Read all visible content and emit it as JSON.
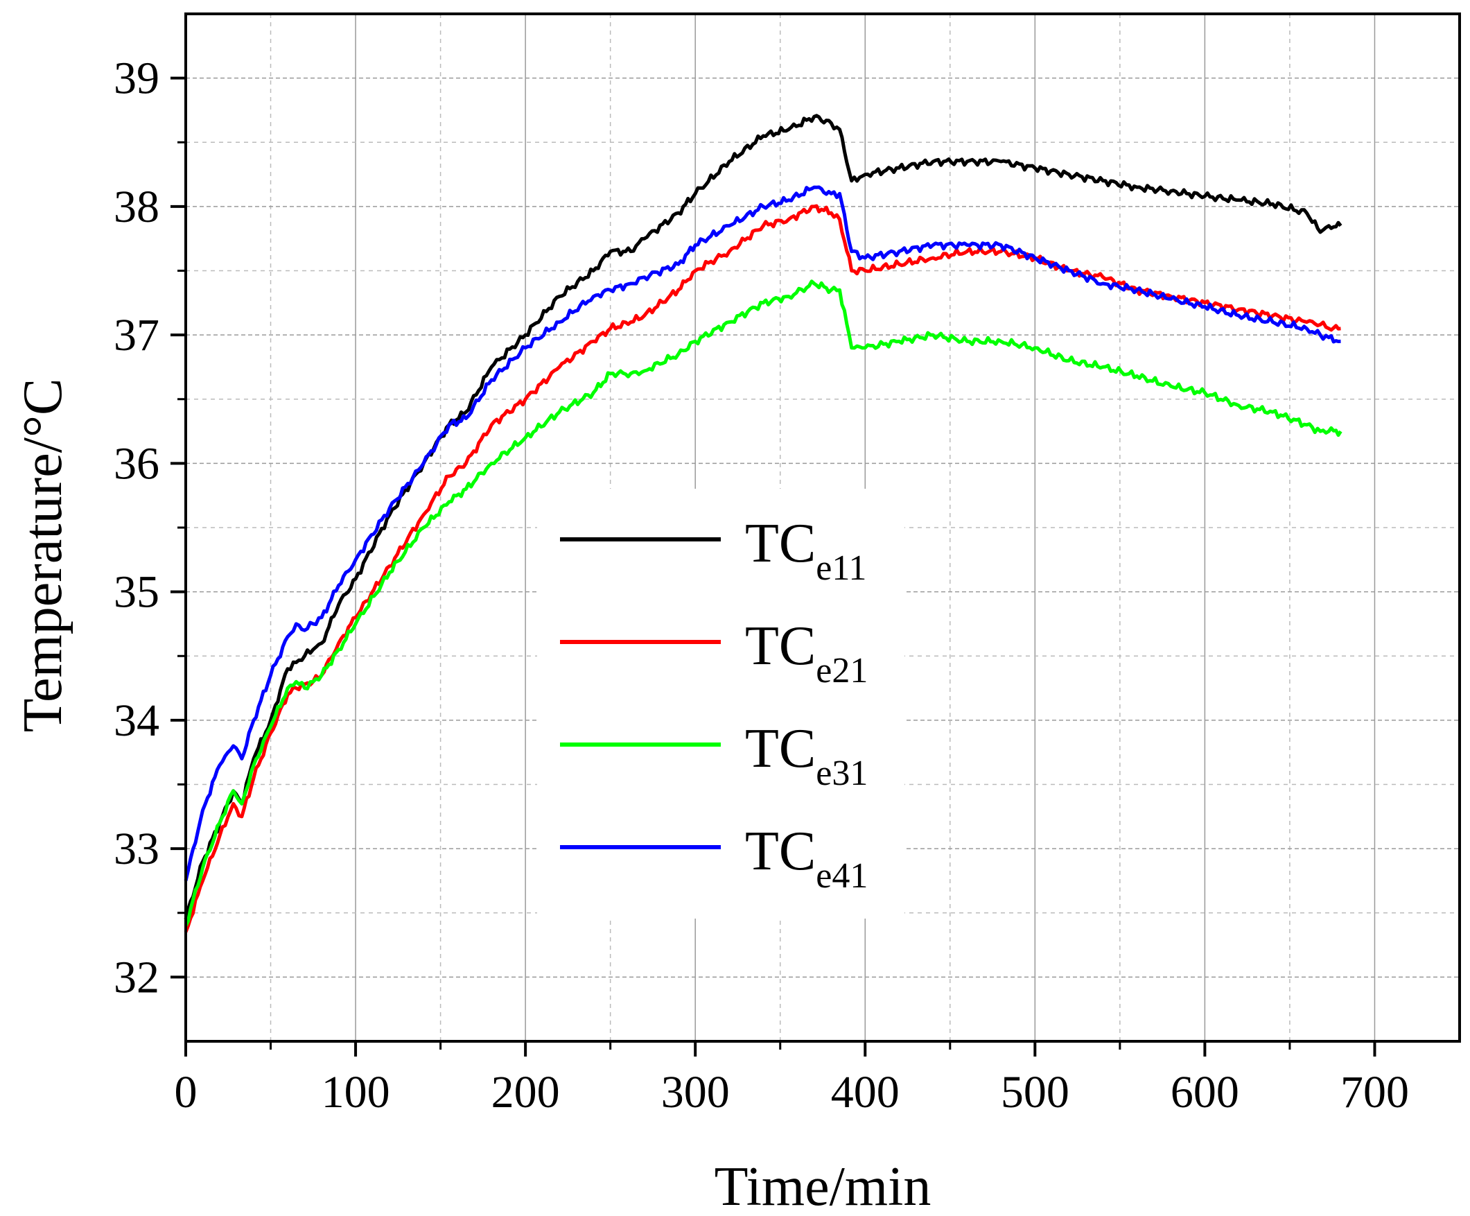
{
  "chart_data": {
    "type": "line",
    "title": "",
    "xlabel": "Time/min",
    "ylabel": "Temperature/°C",
    "xlim": [
      0,
      750
    ],
    "ylim": [
      31.5,
      39.5
    ],
    "xticks": [
      0,
      100,
      200,
      300,
      400,
      500,
      600,
      700
    ],
    "xtick_labels": [
      "0",
      "100",
      "200",
      "300",
      "400",
      "500",
      "600",
      "700"
    ],
    "yticks": [
      32,
      33,
      34,
      35,
      36,
      37,
      38,
      39
    ],
    "ytick_labels": [
      "32",
      "33",
      "34",
      "35",
      "36",
      "37",
      "38",
      "39"
    ],
    "grid": true,
    "legend_position": "center",
    "series": [
      {
        "name": "TCe11",
        "label_main": "TC",
        "label_sub": "e11",
        "color": "#000000",
        "x": [
          0,
          10,
          20,
          28,
          33,
          40,
          50,
          60,
          65,
          70,
          75,
          80,
          90,
          100,
          120,
          140,
          155,
          165,
          180,
          200,
          220,
          240,
          250,
          262,
          270,
          290,
          300,
          320,
          340,
          355,
          370,
          380,
          385,
          392,
          400,
          420,
          440,
          460,
          480,
          500,
          520,
          540,
          560,
          580,
          600,
          620,
          640,
          660,
          668,
          673,
          680
        ],
        "y": [
          32.45,
          32.9,
          33.2,
          33.45,
          33.35,
          33.7,
          34.0,
          34.4,
          34.45,
          34.5,
          34.55,
          34.6,
          34.9,
          35.1,
          35.6,
          36.0,
          36.3,
          36.4,
          36.75,
          37.0,
          37.3,
          37.5,
          37.65,
          37.65,
          37.75,
          37.95,
          38.1,
          38.35,
          38.55,
          38.6,
          38.7,
          38.65,
          38.6,
          38.2,
          38.25,
          38.3,
          38.35,
          38.35,
          38.35,
          38.3,
          38.25,
          38.2,
          38.15,
          38.12,
          38.08,
          38.05,
          38.02,
          37.95,
          37.8,
          37.85,
          37.85
        ]
      },
      {
        "name": "TCe21",
        "label_main": "TC",
        "label_sub": "e21",
        "color": "#ff0000",
        "x": [
          0,
          10,
          20,
          28,
          33,
          40,
          50,
          60,
          65,
          70,
          75,
          80,
          90,
          100,
          120,
          140,
          155,
          165,
          180,
          200,
          220,
          240,
          250,
          262,
          270,
          290,
          300,
          320,
          340,
          355,
          370,
          380,
          385,
          392,
          400,
          420,
          440,
          460,
          480,
          500,
          520,
          540,
          560,
          580,
          600,
          620,
          640,
          660,
          668,
          673,
          680
        ],
        "y": [
          32.35,
          32.75,
          33.1,
          33.35,
          33.25,
          33.55,
          33.9,
          34.2,
          34.25,
          34.28,
          34.3,
          34.35,
          34.6,
          34.8,
          35.2,
          35.6,
          35.9,
          36.0,
          36.3,
          36.5,
          36.75,
          36.95,
          37.05,
          37.1,
          37.15,
          37.35,
          37.5,
          37.65,
          37.85,
          37.9,
          38.0,
          37.95,
          37.9,
          37.5,
          37.5,
          37.55,
          37.6,
          37.65,
          37.65,
          37.6,
          37.5,
          37.45,
          37.35,
          37.3,
          37.25,
          37.2,
          37.15,
          37.1,
          37.08,
          37.05,
          37.05
        ]
      },
      {
        "name": "TCe31",
        "label_main": "TC",
        "label_sub": "e31",
        "color": "#00ff00",
        "x": [
          0,
          10,
          20,
          28,
          33,
          40,
          50,
          60,
          65,
          70,
          75,
          80,
          90,
          100,
          120,
          140,
          155,
          165,
          180,
          200,
          220,
          240,
          250,
          262,
          270,
          290,
          300,
          320,
          340,
          355,
          370,
          380,
          385,
          392,
          400,
          420,
          440,
          460,
          480,
          500,
          520,
          540,
          560,
          580,
          600,
          620,
          640,
          660,
          668,
          673,
          680
        ],
        "y": [
          32.4,
          32.85,
          33.2,
          33.45,
          33.35,
          33.65,
          33.95,
          34.25,
          34.3,
          34.25,
          34.3,
          34.35,
          34.55,
          34.75,
          35.15,
          35.5,
          35.7,
          35.8,
          36.0,
          36.2,
          36.4,
          36.55,
          36.7,
          36.7,
          36.72,
          36.85,
          36.95,
          37.1,
          37.25,
          37.3,
          37.4,
          37.35,
          37.35,
          36.9,
          36.9,
          36.95,
          37.0,
          36.95,
          36.95,
          36.9,
          36.8,
          36.75,
          36.68,
          36.6,
          36.55,
          36.45,
          36.4,
          36.3,
          36.25,
          36.25,
          36.25
        ]
      },
      {
        "name": "TCe41",
        "label_main": "TC",
        "label_sub": "e41",
        "color": "#0000ff",
        "x": [
          0,
          10,
          20,
          28,
          33,
          40,
          50,
          60,
          65,
          70,
          75,
          80,
          90,
          100,
          120,
          140,
          155,
          165,
          180,
          200,
          220,
          240,
          250,
          262,
          270,
          290,
          300,
          320,
          340,
          355,
          370,
          380,
          385,
          392,
          400,
          420,
          440,
          460,
          480,
          500,
          520,
          540,
          560,
          580,
          600,
          620,
          640,
          660,
          668,
          673,
          680
        ],
        "y": [
          32.75,
          33.3,
          33.65,
          33.8,
          33.7,
          34.0,
          34.35,
          34.65,
          34.75,
          34.7,
          34.75,
          34.8,
          35.05,
          35.25,
          35.65,
          36.0,
          36.3,
          36.35,
          36.65,
          36.9,
          37.1,
          37.3,
          37.35,
          37.4,
          37.45,
          37.55,
          37.7,
          37.85,
          38.0,
          38.05,
          38.15,
          38.1,
          38.1,
          37.65,
          37.6,
          37.65,
          37.7,
          37.7,
          37.7,
          37.6,
          37.5,
          37.4,
          37.35,
          37.28,
          37.22,
          37.15,
          37.1,
          37.05,
          37.0,
          36.98,
          36.95
        ]
      }
    ]
  }
}
